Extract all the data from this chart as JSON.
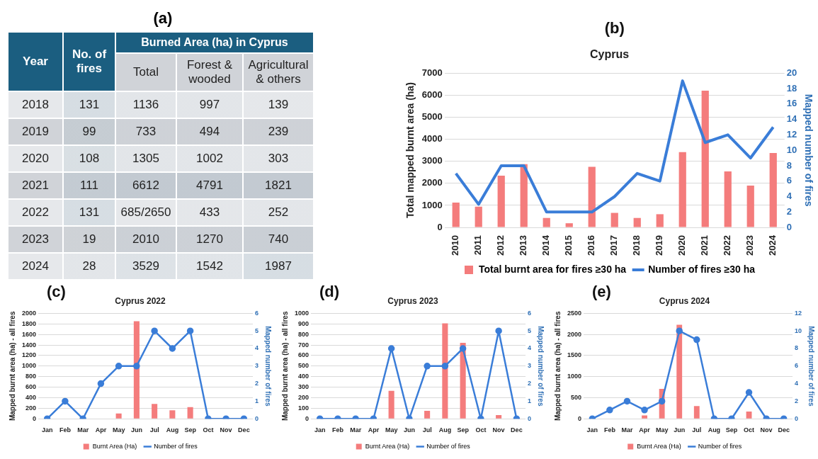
{
  "chart_data": [
    {
      "type": "heatmap",
      "title": "(a)",
      "subtitle": "Burned Area (ha) in Cyprus",
      "ylabel": "Year",
      "categories": [
        "No. of fires",
        "Total",
        "Forest & wooded",
        "Agricultural & others"
      ],
      "y_categories": [
        "2018",
        "2019",
        "2020",
        "2021",
        "2022",
        "2023",
        "2024"
      ],
      "cells": [
        [
          131,
          1136,
          997,
          139
        ],
        [
          99,
          733,
          494,
          239
        ],
        [
          108,
          1305,
          1002,
          303
        ],
        [
          111,
          6612,
          4791,
          1821
        ],
        [
          131,
          null,
          433,
          252
        ],
        [
          19,
          2010,
          1270,
          740
        ],
        [
          28,
          3529,
          1542,
          1987
        ]
      ],
      "cell_labels": [
        [
          "131",
          "1136",
          "997",
          "139"
        ],
        [
          "99",
          "733",
          "494",
          "239"
        ],
        [
          "108",
          "1305",
          "1002",
          "303"
        ],
        [
          "111",
          "6612",
          "4791",
          "1821"
        ],
        [
          "131",
          "685/2650",
          "433",
          "252"
        ],
        [
          "19",
          "2010",
          "1270",
          "740"
        ],
        [
          "28",
          "3529",
          "1542",
          "1987"
        ]
      ]
    },
    {
      "type": "bar",
      "title": "Cyprus",
      "annotations": [
        "(b)"
      ],
      "ylabel": "Total mapped burnt area (ha)",
      "y2label": "Mapped number of fires",
      "categories": [
        "2010",
        "2011",
        "2012",
        "2013",
        "2014",
        "2015",
        "2016",
        "2017",
        "2018",
        "2019",
        "2020",
        "2021",
        "2022",
        "2023",
        "2024"
      ],
      "ylim": [
        0,
        7000
      ],
      "yticks": [
        0,
        1000,
        2000,
        3000,
        4000,
        5000,
        6000,
        7000
      ],
      "y2lim": [
        0,
        20
      ],
      "y2ticks": [
        0,
        2,
        4,
        6,
        8,
        10,
        12,
        14,
        16,
        18,
        20
      ],
      "grid": "y",
      "legend": "bottom",
      "marker": "none",
      "series": [
        {
          "name": "Total burnt area for fires ≥30 ha",
          "type": "bar",
          "color": "#f47c7c",
          "values": [
            1130,
            940,
            2350,
            2870,
            430,
            190,
            2750,
            660,
            430,
            600,
            3420,
            6200,
            2540,
            1900,
            3380
          ]
        },
        {
          "name": "Number of fires ≥30 ha",
          "type": "line",
          "axis": "y2",
          "color": "#3a7dd8",
          "values": [
            7,
            3,
            8,
            8,
            2,
            2,
            2,
            4,
            7,
            6,
            19,
            11,
            12,
            9,
            13
          ]
        }
      ]
    },
    {
      "type": "bar",
      "title": "Cyprus 2022",
      "annotations": [
        "(c)"
      ],
      "ylabel": "Mapped burnt area (ha) - all fires",
      "y2label": "Mapped number of fires",
      "categories": [
        "Jan",
        "Feb",
        "Mar",
        "Apr",
        "May",
        "Jun",
        "Jul",
        "Aug",
        "Sep",
        "Oct",
        "Nov",
        "Dec"
      ],
      "ylim": [
        0,
        2000
      ],
      "yticks": [
        0,
        200,
        400,
        600,
        800,
        1000,
        1200,
        1400,
        1600,
        1800,
        2000
      ],
      "y2lim": [
        0,
        6
      ],
      "y2ticks": [
        0,
        1,
        2,
        3,
        4,
        5,
        6
      ],
      "grid": "y",
      "legend": "bottom",
      "marker": "circle",
      "series": [
        {
          "name": "Burnt Area (Ha)",
          "type": "bar",
          "color": "#f47c7c",
          "values": [
            0,
            0,
            0,
            0,
            100,
            1850,
            280,
            160,
            220,
            0,
            0,
            0
          ]
        },
        {
          "name": "Number of fires",
          "type": "line",
          "axis": "y2",
          "color": "#3a7dd8",
          "values": [
            0,
            1,
            0,
            2,
            3,
            3,
            5,
            4,
            5,
            0,
            0,
            0
          ]
        }
      ]
    },
    {
      "type": "bar",
      "title": "Cyprus 2023",
      "annotations": [
        "(d)"
      ],
      "ylabel": "Mapped burnt area (ha) - all fires",
      "y2label": "Mapped number of fires",
      "categories": [
        "Jan",
        "Feb",
        "Mar",
        "Apr",
        "May",
        "Jun",
        "Jul",
        "Aug",
        "Sep",
        "Oct",
        "Nov",
        "Dec"
      ],
      "ylim": [
        0,
        1000
      ],
      "yticks": [
        0,
        100,
        200,
        300,
        400,
        500,
        600,
        700,
        800,
        900,
        1000
      ],
      "y2lim": [
        0,
        6
      ],
      "y2ticks": [
        0,
        1,
        2,
        3,
        4,
        5,
        6
      ],
      "grid": "y",
      "legend": "bottom",
      "marker": "circle",
      "series": [
        {
          "name": "Burnt Area (Ha)",
          "type": "bar",
          "color": "#f47c7c",
          "values": [
            0,
            0,
            0,
            0,
            265,
            0,
            75,
            905,
            720,
            0,
            35,
            0
          ]
        },
        {
          "name": "Number of fires",
          "type": "line",
          "axis": "y2",
          "color": "#3a7dd8",
          "values": [
            0,
            0,
            0,
            0,
            4,
            0,
            3,
            3,
            4,
            0,
            5,
            0
          ]
        }
      ]
    },
    {
      "type": "bar",
      "title": "Cyprus 2024",
      "annotations": [
        "(e)"
      ],
      "ylabel": "Mapped burnt area (ha) - all fires",
      "y2label": "Mapped number of fires",
      "categories": [
        "Jan",
        "Feb",
        "Mar",
        "Apr",
        "May",
        "Jun",
        "Jul",
        "Aug",
        "Sep",
        "Oct",
        "Nov",
        "Dec"
      ],
      "ylim": [
        0,
        2500
      ],
      "yticks": [
        0,
        500,
        1000,
        1500,
        2000,
        2500
      ],
      "y2lim": [
        0,
        12
      ],
      "y2ticks": [
        0,
        2,
        4,
        6,
        8,
        10,
        12
      ],
      "grid": "y",
      "legend": "bottom",
      "marker": "circle",
      "series": [
        {
          "name": "Burnt Area (Ha)",
          "type": "bar",
          "color": "#f47c7c",
          "values": [
            0,
            0,
            0,
            80,
            710,
            2230,
            300,
            0,
            0,
            170,
            0,
            0
          ]
        },
        {
          "name": "Number of fires",
          "type": "line",
          "axis": "y2",
          "color": "#3a7dd8",
          "values": [
            0,
            1,
            2,
            1,
            2,
            10,
            9,
            0,
            0,
            3,
            0,
            0
          ]
        }
      ]
    }
  ]
}
